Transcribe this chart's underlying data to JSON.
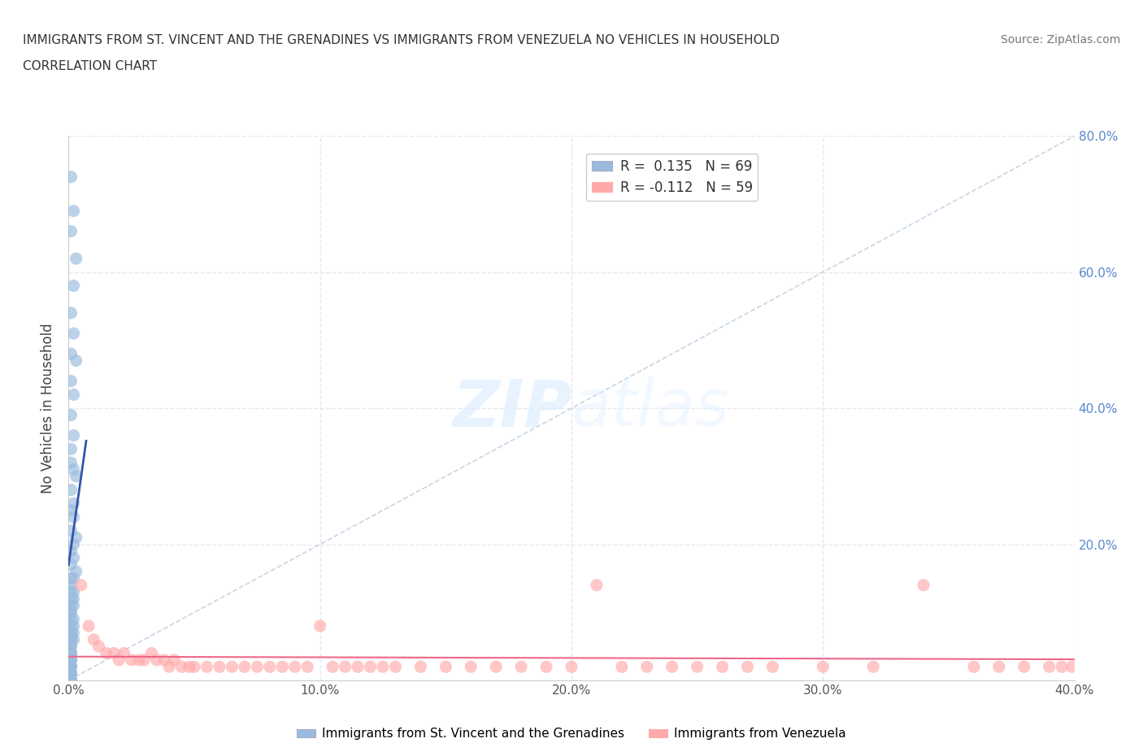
{
  "title_line1": "IMMIGRANTS FROM ST. VINCENT AND THE GRENADINES VS IMMIGRANTS FROM VENEZUELA NO VEHICLES IN HOUSEHOLD",
  "title_line2": "CORRELATION CHART",
  "source": "Source: ZipAtlas.com",
  "ylabel": "No Vehicles in Household",
  "xmin": 0.0,
  "xmax": 0.4,
  "ymin": 0.0,
  "ymax": 0.8,
  "xticks": [
    0.0,
    0.1,
    0.2,
    0.3,
    0.4
  ],
  "yticks": [
    0.0,
    0.2,
    0.4,
    0.6,
    0.8
  ],
  "xtick_labels": [
    "0.0%",
    "10.0%",
    "20.0%",
    "30.0%",
    "40.0%"
  ],
  "ytick_labels_right": [
    "",
    "20.0%",
    "40.0%",
    "60.0%",
    "80.0%"
  ],
  "blue_R": 0.135,
  "blue_N": 69,
  "pink_R": -0.112,
  "pink_N": 59,
  "blue_color": "#99BBDD",
  "pink_color": "#FFAAAA",
  "blue_trend_color": "#3355AA",
  "pink_trend_color": "#EE6688",
  "legend1": "Immigrants from St. Vincent and the Grenadines",
  "legend2": "Immigrants from Venezuela",
  "watermark_zip": "ZIP",
  "watermark_atlas": "atlas",
  "background_color": "#ffffff",
  "grid_color": "#e8e8e8",
  "title_color": "#333333",
  "ytick_color": "#5588CC",
  "xtick_color": "#555555",
  "blue_x": [
    0.001,
    0.002,
    0.001,
    0.003,
    0.002,
    0.001,
    0.002,
    0.001,
    0.003,
    0.001,
    0.002,
    0.001,
    0.002,
    0.001,
    0.001,
    0.002,
    0.003,
    0.001,
    0.002,
    0.001,
    0.002,
    0.001,
    0.003,
    0.002,
    0.001,
    0.002,
    0.001,
    0.003,
    0.002,
    0.001,
    0.001,
    0.002,
    0.001,
    0.001,
    0.002,
    0.001,
    0.002,
    0.001,
    0.001,
    0.002,
    0.001,
    0.001,
    0.002,
    0.001,
    0.001,
    0.002,
    0.001,
    0.001,
    0.002,
    0.001,
    0.001,
    0.001,
    0.001,
    0.001,
    0.001,
    0.001,
    0.001,
    0.001,
    0.001,
    0.001,
    0.001,
    0.001,
    0.001,
    0.001,
    0.001,
    0.001,
    0.001,
    0.001,
    0.001
  ],
  "blue_y": [
    0.74,
    0.69,
    0.66,
    0.62,
    0.58,
    0.54,
    0.51,
    0.48,
    0.47,
    0.44,
    0.42,
    0.39,
    0.36,
    0.34,
    0.32,
    0.31,
    0.3,
    0.28,
    0.26,
    0.25,
    0.24,
    0.22,
    0.21,
    0.2,
    0.19,
    0.18,
    0.17,
    0.16,
    0.15,
    0.15,
    0.14,
    0.13,
    0.13,
    0.12,
    0.12,
    0.11,
    0.11,
    0.1,
    0.1,
    0.09,
    0.09,
    0.08,
    0.08,
    0.07,
    0.07,
    0.07,
    0.06,
    0.06,
    0.06,
    0.05,
    0.05,
    0.04,
    0.04,
    0.04,
    0.03,
    0.03,
    0.03,
    0.02,
    0.02,
    0.02,
    0.01,
    0.01,
    0.01,
    0.01,
    0.0,
    0.0,
    0.0,
    0.0,
    0.0
  ],
  "pink_x": [
    0.005,
    0.008,
    0.01,
    0.012,
    0.015,
    0.018,
    0.02,
    0.022,
    0.025,
    0.028,
    0.03,
    0.033,
    0.035,
    0.038,
    0.04,
    0.042,
    0.045,
    0.048,
    0.05,
    0.055,
    0.06,
    0.065,
    0.07,
    0.075,
    0.08,
    0.085,
    0.09,
    0.095,
    0.1,
    0.105,
    0.11,
    0.115,
    0.12,
    0.125,
    0.13,
    0.14,
    0.15,
    0.16,
    0.17,
    0.18,
    0.19,
    0.2,
    0.21,
    0.22,
    0.23,
    0.24,
    0.25,
    0.26,
    0.27,
    0.28,
    0.3,
    0.32,
    0.34,
    0.36,
    0.37,
    0.38,
    0.39,
    0.395,
    0.399
  ],
  "pink_y": [
    0.14,
    0.08,
    0.06,
    0.05,
    0.04,
    0.04,
    0.03,
    0.04,
    0.03,
    0.03,
    0.03,
    0.04,
    0.03,
    0.03,
    0.02,
    0.03,
    0.02,
    0.02,
    0.02,
    0.02,
    0.02,
    0.02,
    0.02,
    0.02,
    0.02,
    0.02,
    0.02,
    0.02,
    0.08,
    0.02,
    0.02,
    0.02,
    0.02,
    0.02,
    0.02,
    0.02,
    0.02,
    0.02,
    0.02,
    0.02,
    0.02,
    0.02,
    0.14,
    0.02,
    0.02,
    0.02,
    0.02,
    0.02,
    0.02,
    0.02,
    0.02,
    0.02,
    0.14,
    0.02,
    0.02,
    0.02,
    0.02,
    0.02,
    0.02
  ]
}
